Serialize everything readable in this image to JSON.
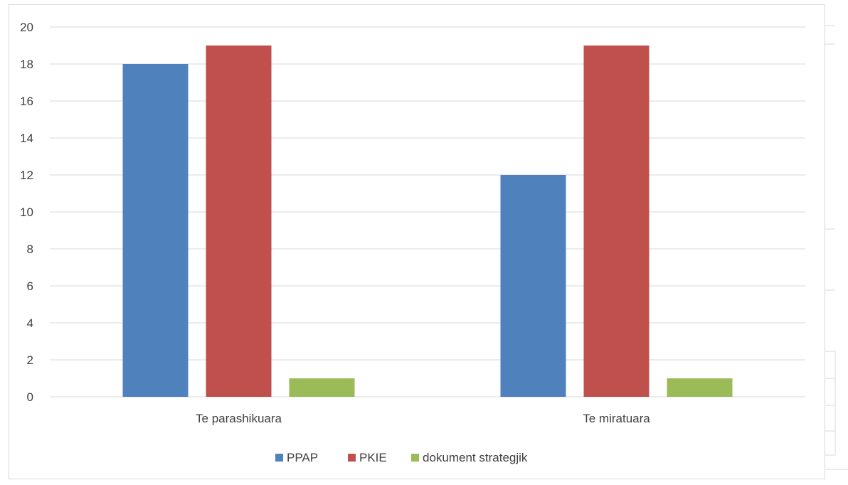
{
  "chart_data": {
    "type": "bar",
    "categories": [
      "Te parashikuara",
      "Te miratuara"
    ],
    "series": [
      {
        "name": "PPAP",
        "color": "#4f81bd",
        "values": [
          18,
          12
        ]
      },
      {
        "name": "PKIE",
        "color": "#c0504d",
        "values": [
          19,
          19
        ]
      },
      {
        "name": "dokument strategjik",
        "color": "#9bbb59",
        "values": [
          1,
          1
        ]
      }
    ],
    "title": "",
    "xlabel": "",
    "ylabel": "",
    "ylim": [
      0,
      20
    ],
    "yticks": [
      0,
      2,
      4,
      6,
      8,
      10,
      12,
      14,
      16,
      18,
      20
    ],
    "grid": true,
    "legend": "bottom",
    "colors": {
      "grid": "#d9d9d9",
      "axis": "#d9d9d9",
      "text": "#404040"
    }
  }
}
